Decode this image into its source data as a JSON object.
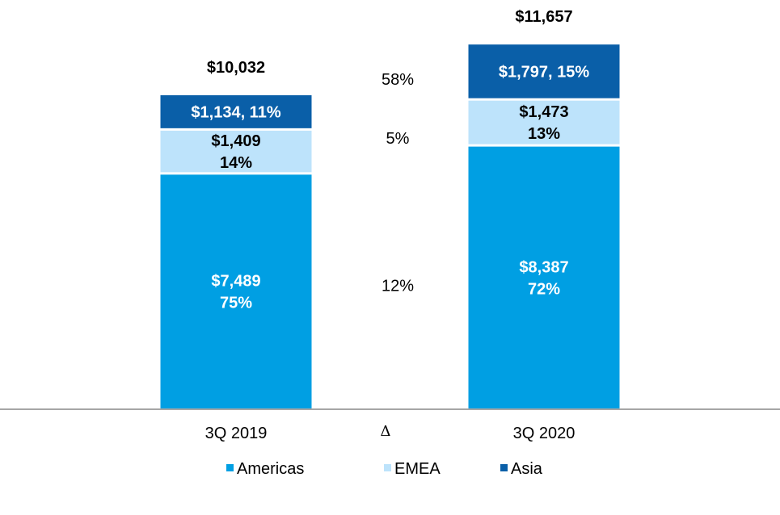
{
  "chart_data": {
    "type": "bar",
    "stacked": true,
    "title": "",
    "xlabel": "",
    "ylabel": "",
    "categories": [
      "3Q 2019",
      "3Q 2020"
    ],
    "delta_symbol": "Δ",
    "series": [
      {
        "name": "Americas",
        "color": "#009fe3",
        "values": [
          7489,
          8387
        ],
        "labels": [
          [
            "$7,489",
            "75%"
          ],
          [
            "$8,387",
            "72%"
          ]
        ],
        "label_color": "#ffffff",
        "delta": "12%"
      },
      {
        "name": "EMEA",
        "color": "#bde3fb",
        "values": [
          1409,
          1473
        ],
        "labels": [
          [
            "$1,409",
            "14%"
          ],
          [
            "$1,473",
            "13%"
          ]
        ],
        "label_color": "#000000",
        "delta": "5%"
      },
      {
        "name": "Asia",
        "color": "#0a5fa8",
        "values": [
          1134,
          1797
        ],
        "labels": [
          [
            "$1,134, 11%"
          ],
          [
            "$1,797, 15%"
          ]
        ],
        "label_color": "#ffffff",
        "delta": "58%"
      }
    ],
    "totals": [
      "$10,032",
      "$11,657"
    ],
    "legend": [
      "Americas",
      "EMEA",
      "Asia"
    ],
    "legend_position": "bottom",
    "ylim": [
      0,
      12000
    ],
    "grid": false
  }
}
